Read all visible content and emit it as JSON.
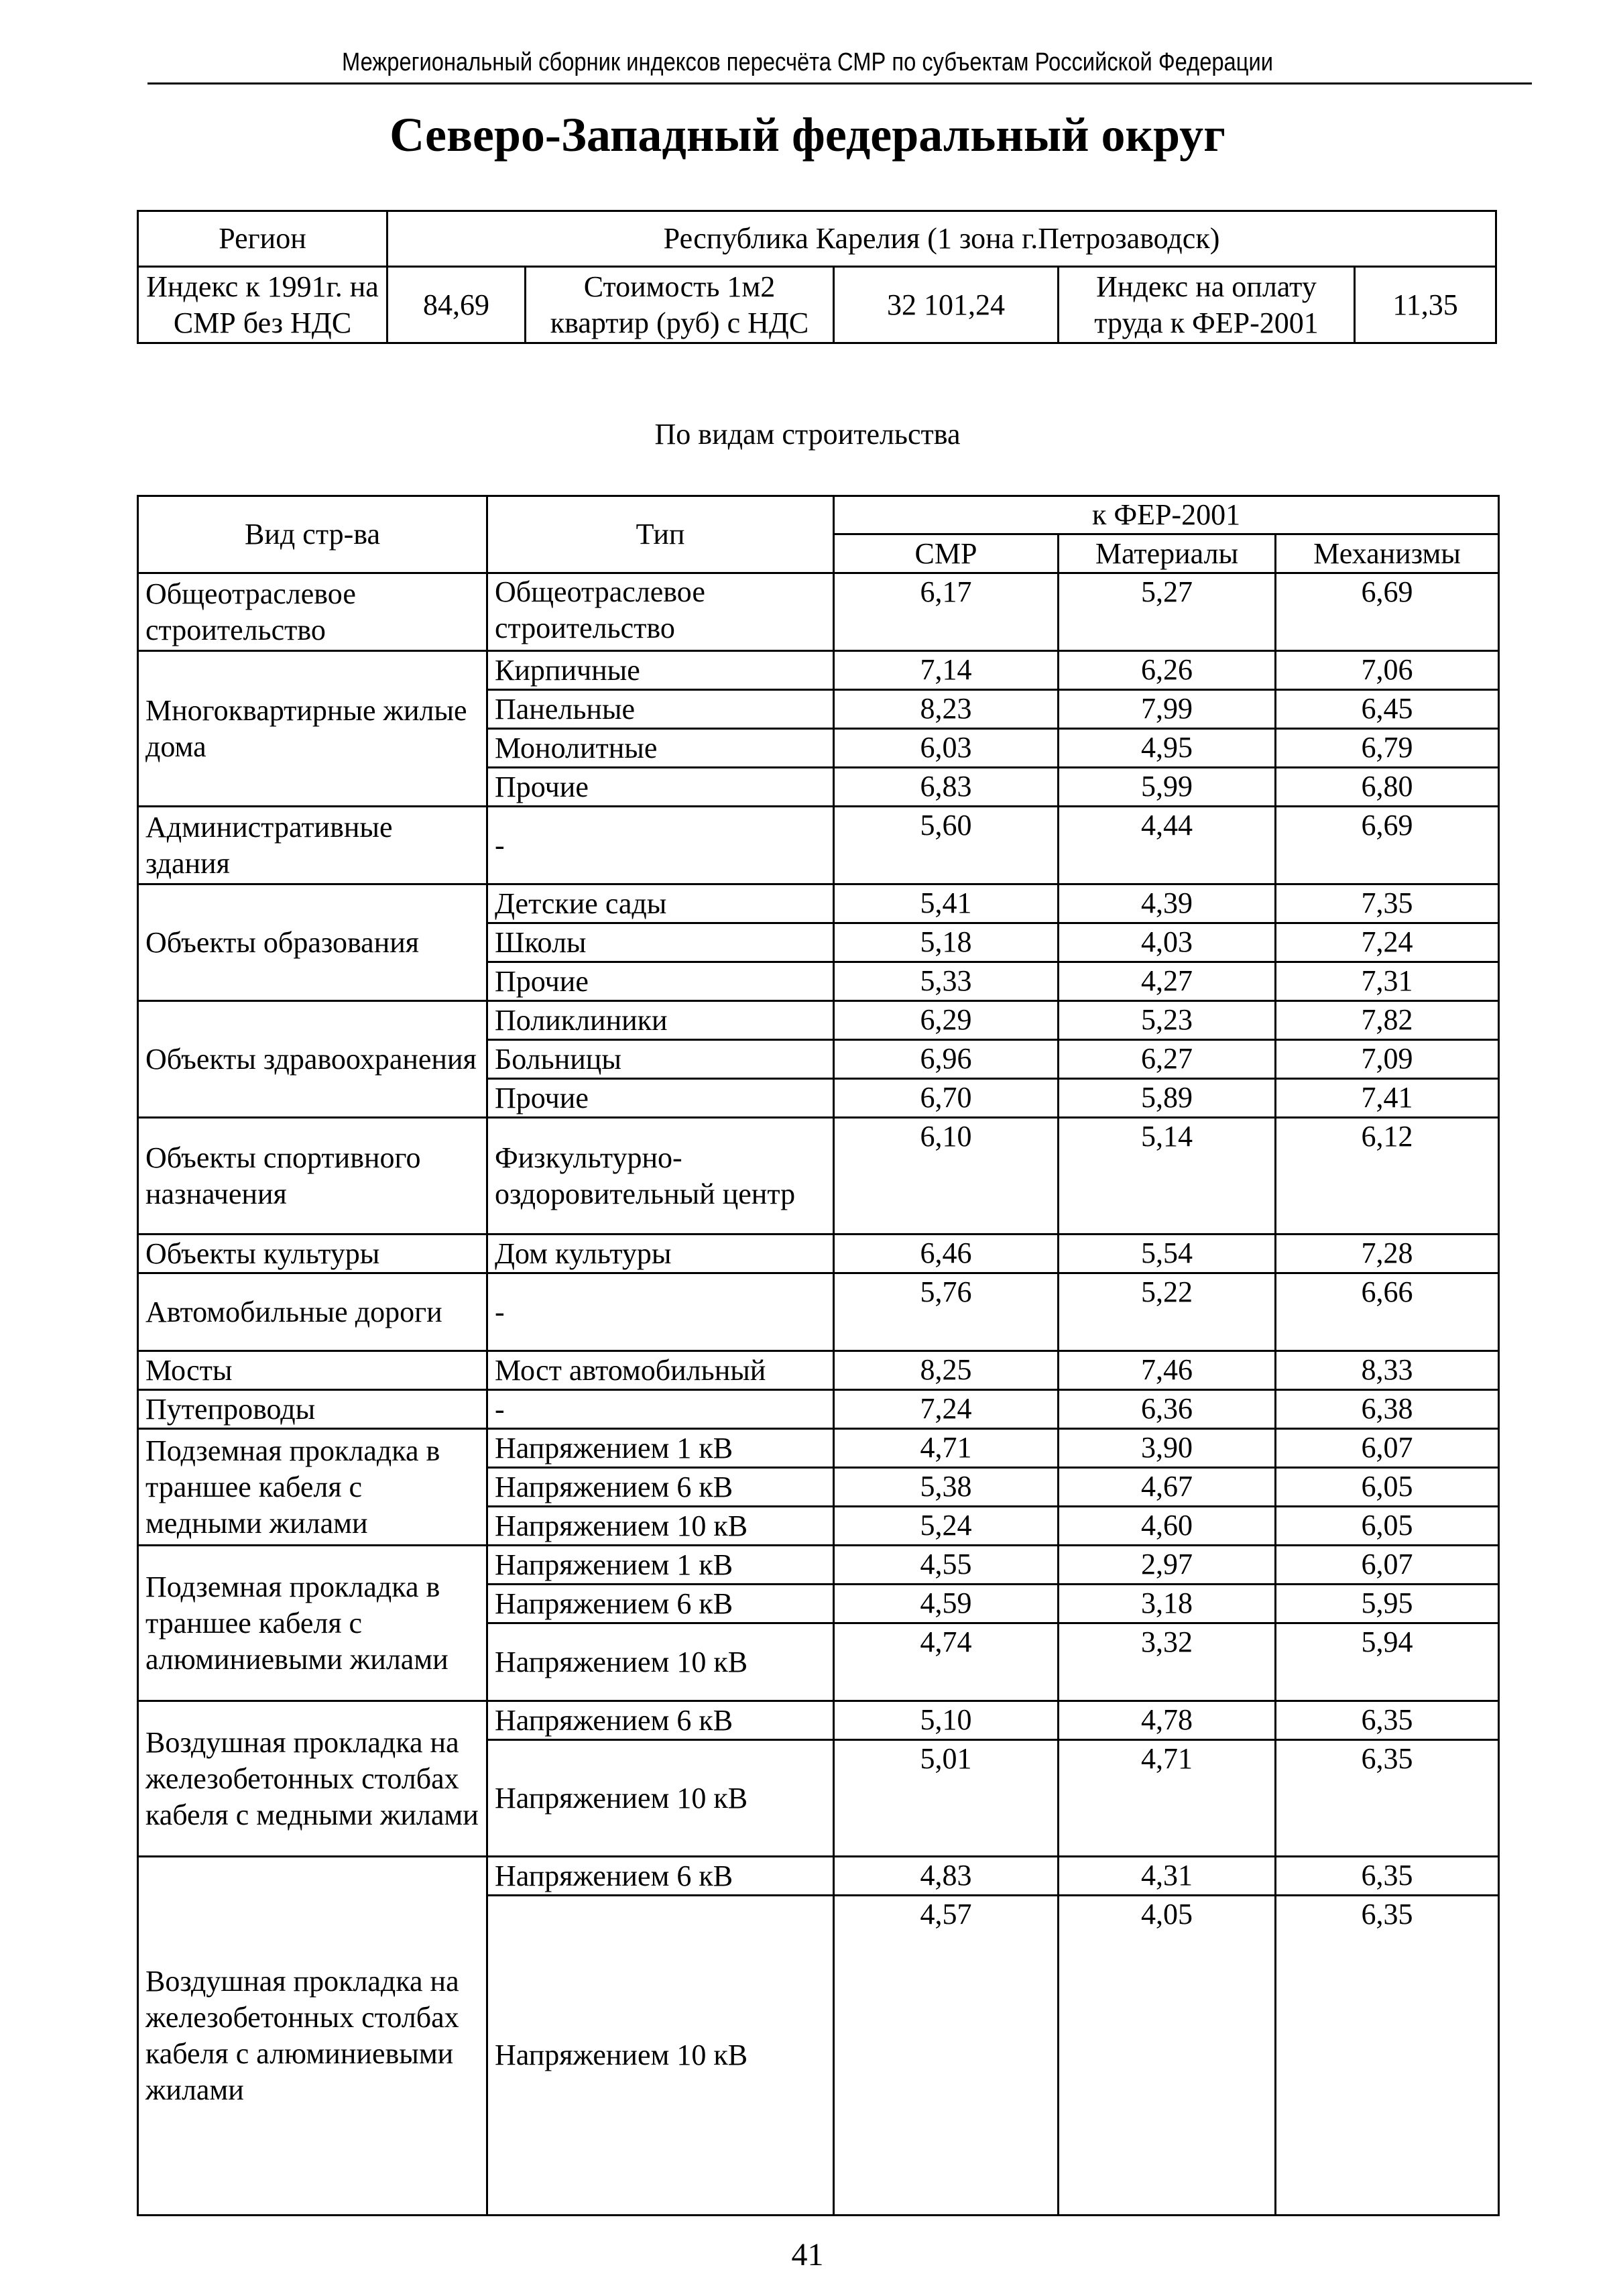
{
  "running_header": "Межрегиональный сборник индексов пересчёта СМР  по субъектам Российской Федерации",
  "title": "Северо-Западный федеральный округ",
  "summary": {
    "region_label": "Регион",
    "region_value": "Республика Карелия (1 зона г.Петрозаводск)",
    "index_label": "Индекс к 1991г. на СМР без НДС",
    "index_value": "84,69",
    "cost_label": "Стоимость 1м2 квартир (руб) с НДС",
    "cost_value": "32 101,24",
    "labor_label": "Индекс на оплату труда к ФЕР-2001",
    "labor_value": "11,35"
  },
  "subtitle": "По видам строительства",
  "table": {
    "headers": {
      "kind": "Вид стр-ва",
      "type": "Тип",
      "group": "к ФЕР-2001",
      "smr": "СМР",
      "mat": "Материалы",
      "mech": "Механизмы"
    },
    "groups": [
      {
        "name": "Общеотраслевое строительство",
        "rows": [
          {
            "type": "Общеотраслевое строительство",
            "smr": "6,17",
            "mat": "5,27",
            "mech": "6,69"
          }
        ]
      },
      {
        "name": "Многоквартирные жилые дома",
        "rows": [
          {
            "type": "Кирпичные",
            "smr": "7,14",
            "mat": "6,26",
            "mech": "7,06"
          },
          {
            "type": "Панельные",
            "smr": "8,23",
            "mat": "7,99",
            "mech": "6,45"
          },
          {
            "type": "Монолитные",
            "smr": "6,03",
            "mat": "4,95",
            "mech": "6,79"
          },
          {
            "type": "Прочие",
            "smr": "6,83",
            "mat": "5,99",
            "mech": "6,80"
          }
        ]
      },
      {
        "name": "Административные здания",
        "rows": [
          {
            "type": "-",
            "smr": "5,60",
            "mat": "4,44",
            "mech": "6,69"
          }
        ]
      },
      {
        "name": "Объекты образования",
        "rows": [
          {
            "type": "Детские сады",
            "smr": "5,41",
            "mat": "4,39",
            "mech": "7,35"
          },
          {
            "type": "Школы",
            "smr": "5,18",
            "mat": "4,03",
            "mech": "7,24"
          },
          {
            "type": "Прочие",
            "smr": "5,33",
            "mat": "4,27",
            "mech": "7,31"
          }
        ]
      },
      {
        "name": "Объекты здравоохранения",
        "rows": [
          {
            "type": "Поликлиники",
            "smr": "6,29",
            "mat": "5,23",
            "mech": "7,82"
          },
          {
            "type": "Больницы",
            "smr": "6,96",
            "mat": "6,27",
            "mech": "7,09"
          },
          {
            "type": "Прочие",
            "smr": "6,70",
            "mat": "5,89",
            "mech": "7,41"
          }
        ]
      },
      {
        "name": "Объекты спортивного назначения",
        "rows": [
          {
            "type": "Физкультурно-оздоровительный центр",
            "smr": "6,10",
            "mat": "5,14",
            "mech": "6,12"
          }
        ]
      },
      {
        "name": "Объекты культуры",
        "rows": [
          {
            "type": "Дом культуры",
            "smr": "6,46",
            "mat": "5,54",
            "mech": "7,28"
          }
        ]
      },
      {
        "name": "Автомобильные дороги",
        "rows": [
          {
            "type": "-",
            "smr": "5,76",
            "mat": "5,22",
            "mech": "6,66"
          }
        ]
      },
      {
        "name": "Мосты",
        "rows": [
          {
            "type": "Мост автомобильный",
            "smr": "8,25",
            "mat": "7,46",
            "mech": "8,33"
          }
        ]
      },
      {
        "name": "Путепроводы",
        "rows": [
          {
            "type": "-",
            "smr": "7,24",
            "mat": "6,36",
            "mech": "6,38"
          }
        ]
      },
      {
        "name": "Подземная прокладка в траншее кабеля с медными жилами",
        "rows": [
          {
            "type": "Напряжением 1 кВ",
            "smr": "4,71",
            "mat": "3,90",
            "mech": "6,07"
          },
          {
            "type": "Напряжением 6 кВ",
            "smr": "5,38",
            "mat": "4,67",
            "mech": "6,05"
          },
          {
            "type": "Напряжением 10 кВ",
            "smr": "5,24",
            "mat": "4,60",
            "mech": "6,05"
          }
        ]
      },
      {
        "name": "Подземная прокладка в траншее кабеля  с алюминиевыми жилами",
        "rows": [
          {
            "type": "Напряжением 1 кВ",
            "smr": "4,55",
            "mat": "2,97",
            "mech": "6,07"
          },
          {
            "type": "Напряжением 6 кВ",
            "smr": "4,59",
            "mat": "3,18",
            "mech": "5,95"
          },
          {
            "type": "Напряжением 10 кВ",
            "smr": "4,74",
            "mat": "3,32",
            "mech": "5,94"
          }
        ]
      },
      {
        "name": "Воздушная прокладка на железобетонных столбах кабеля с медными жилами",
        "rows": [
          {
            "type": "Напряжением 6 кВ",
            "smr": "5,10",
            "mat": "4,78",
            "mech": "6,35"
          },
          {
            "type": "Напряжением 10 кВ",
            "smr": "5,01",
            "mat": "4,71",
            "mech": "6,35"
          }
        ]
      },
      {
        "name": "Воздушная прокладка на железобетонных столбах кабеля с алюминиевыми жилами",
        "rows": [
          {
            "type": "Напряжением 6 кВ",
            "smr": "4,83",
            "mat": "4,31",
            "mech": "6,35"
          },
          {
            "type": "Напряжением 10 кВ",
            "smr": "4,57",
            "mat": "4,05",
            "mech": "6,35"
          }
        ]
      }
    ]
  },
  "page_number": "41"
}
